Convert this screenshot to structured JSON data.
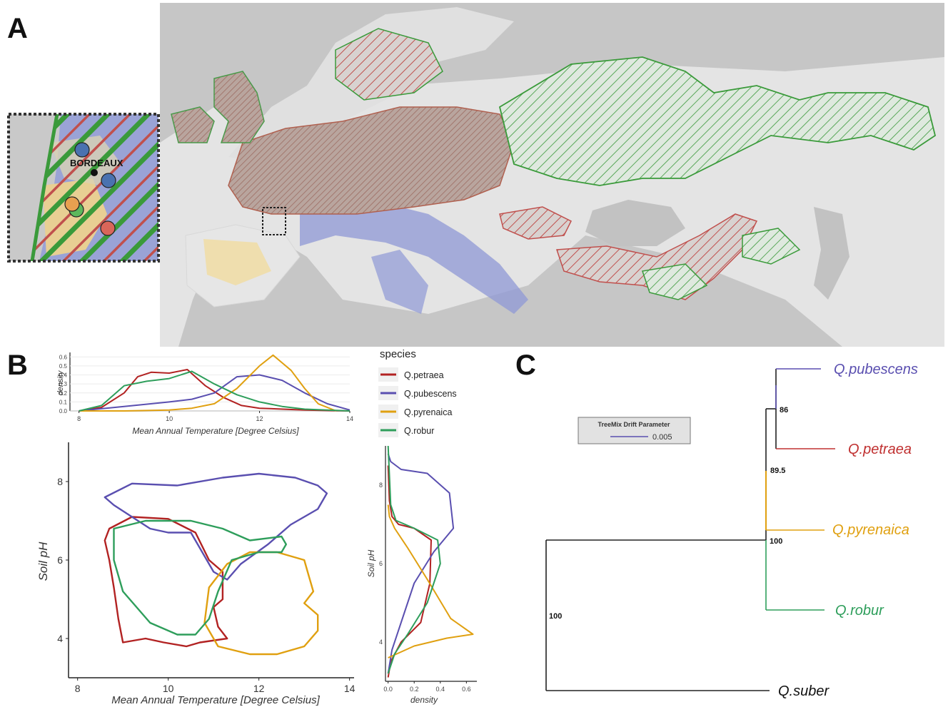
{
  "panels": {
    "a": "A",
    "b": "B",
    "c": "C"
  },
  "map": {
    "inset_label": "BORDEAUX",
    "colors": {
      "robur": "#3a9a3a",
      "petraea": "#c0504d",
      "pubescens": "#6b7fc9",
      "pyrenaica": "#e8b84a"
    },
    "inset_points": [
      {
        "species": "pubescens",
        "color": "#4a72b0"
      },
      {
        "species": "pubescens",
        "color": "#4a72b0"
      },
      {
        "species": "pyrenaica",
        "color": "#e8a050"
      },
      {
        "species": "robur",
        "color": "#5cb85c"
      },
      {
        "species": "petraea",
        "color": "#d9665a"
      }
    ]
  },
  "chart_data": [
    {
      "type": "line",
      "name": "top-density",
      "xlabel": "Mean Annual Temperature [Degree Celsius]",
      "ylabel": "density",
      "xlim": [
        7.8,
        14
      ],
      "ylim": [
        0,
        0.65
      ],
      "xticks": [
        "8",
        "10",
        "12",
        "14"
      ],
      "yticks": [
        "0.0",
        "0.1",
        "0.2",
        "0.3",
        "0.4",
        "0.5",
        "0.6"
      ],
      "series": [
        {
          "name": "Q.petraea",
          "color": "#b22222",
          "x": [
            8,
            8.5,
            9,
            9.3,
            9.6,
            10,
            10.4,
            10.8,
            11.2,
            11.6,
            12,
            13,
            14
          ],
          "y": [
            0,
            0.04,
            0.2,
            0.38,
            0.43,
            0.42,
            0.46,
            0.28,
            0.15,
            0.06,
            0.03,
            0.01,
            0
          ]
        },
        {
          "name": "Q.pubescens",
          "color": "#5a4fb0",
          "x": [
            8,
            9,
            10,
            10.5,
            11,
            11.5,
            12,
            12.5,
            13,
            13.5,
            14
          ],
          "y": [
            0,
            0.05,
            0.1,
            0.13,
            0.2,
            0.38,
            0.4,
            0.34,
            0.2,
            0.08,
            0.01
          ]
        },
        {
          "name": "Q.pyrenaica",
          "color": "#e0a010",
          "x": [
            8,
            9,
            10,
            10.5,
            11,
            11.5,
            12,
            12.3,
            12.7,
            13,
            13.3,
            13.7
          ],
          "y": [
            0,
            0,
            0.01,
            0.03,
            0.08,
            0.25,
            0.5,
            0.62,
            0.45,
            0.25,
            0.08,
            0
          ]
        },
        {
          "name": "Q.robur",
          "color": "#2e9e5b",
          "x": [
            8,
            8.5,
            9,
            9.5,
            10,
            10.5,
            11,
            11.5,
            12,
            12.5,
            13,
            14
          ],
          "y": [
            0,
            0.06,
            0.28,
            0.33,
            0.36,
            0.44,
            0.3,
            0.18,
            0.1,
            0.05,
            0.02,
            0
          ]
        }
      ]
    },
    {
      "type": "line",
      "name": "contours",
      "xlabel": "Mean Annual Temperature [Degree Celsius]",
      "ylabel": "Soil pH",
      "xlim": [
        7.8,
        14.1
      ],
      "ylim": [
        3,
        9
      ],
      "xticks": [
        "8",
        "10",
        "12",
        "14"
      ],
      "yticks": [
        "4",
        "6",
        "8"
      ],
      "series": [
        {
          "name": "Q.petraea",
          "color": "#b22222",
          "x": [
            8.7,
            9.2,
            10,
            10.6,
            10.9,
            11.2,
            11.2,
            11.0,
            11.1,
            11.3,
            10.7,
            10.4,
            9.9,
            9.5,
            9.0,
            8.9,
            8.8,
            8.7,
            8.6,
            8.7
          ],
          "y": [
            6.8,
            7.1,
            7.05,
            6.7,
            6.0,
            5.7,
            5.0,
            4.8,
            4.3,
            4.0,
            3.9,
            3.8,
            3.9,
            4.0,
            3.9,
            4.5,
            5.3,
            6.0,
            6.5,
            6.8
          ]
        },
        {
          "name": "Q.pubescens",
          "color": "#5a4fb0",
          "x": [
            8.6,
            9.2,
            10.2,
            11.2,
            12.0,
            12.8,
            13.3,
            13.5,
            13.3,
            12.7,
            12.2,
            11.6,
            11.3,
            11.0,
            10.8,
            10.5,
            10.0,
            9.6,
            9.2,
            8.8,
            8.6
          ],
          "y": [
            7.6,
            7.95,
            7.9,
            8.1,
            8.2,
            8.1,
            7.9,
            7.7,
            7.3,
            6.9,
            6.4,
            5.9,
            5.5,
            5.7,
            6.1,
            6.7,
            6.7,
            6.8,
            7.1,
            7.4,
            7.6
          ]
        },
        {
          "name": "Q.pyrenaica",
          "color": "#e0a010",
          "x": [
            10.9,
            11.3,
            11.8,
            12.4,
            13.0,
            13.1,
            13.2,
            13.0,
            13.3,
            13.3,
            13.0,
            12.4,
            11.8,
            11.1,
            10.8,
            10.9
          ],
          "y": [
            5.3,
            5.9,
            6.2,
            6.2,
            6.0,
            5.6,
            5.2,
            4.9,
            4.6,
            4.2,
            3.8,
            3.6,
            3.6,
            3.8,
            4.4,
            5.3
          ]
        },
        {
          "name": "Q.robur",
          "color": "#2e9e5b",
          "x": [
            8.8,
            9.5,
            10.5,
            11.2,
            11.8,
            12.5,
            12.6,
            12.5,
            12.0,
            11.4,
            11.1,
            10.9,
            10.6,
            10.2,
            9.6,
            9.0,
            8.8,
            8.8
          ],
          "y": [
            6.8,
            7.0,
            7.0,
            6.8,
            6.5,
            6.6,
            6.4,
            6.2,
            6.2,
            6.0,
            5.2,
            4.5,
            4.1,
            4.1,
            4.4,
            5.2,
            6.0,
            6.8
          ]
        }
      ]
    },
    {
      "type": "line",
      "name": "right-density",
      "xlabel": "density",
      "ylabel": "Soil pH",
      "xlim": [
        -0.02,
        0.68
      ],
      "ylim": [
        3,
        9
      ],
      "xticks": [
        "0.0",
        "0.2",
        "0.4",
        "0.6"
      ],
      "yticks": [
        "4",
        "6",
        "8"
      ],
      "series": [
        {
          "name": "Q.petraea",
          "color": "#b22222",
          "x": [
            0,
            0.02,
            0.1,
            0.25,
            0.32,
            0.33,
            0.2,
            0.08,
            0.03,
            0.01,
            0
          ],
          "y": [
            3.1,
            3.5,
            4.0,
            4.5,
            5.5,
            6.6,
            6.9,
            7.0,
            7.2,
            7.6,
            8.5
          ]
        },
        {
          "name": "Q.pubescens",
          "color": "#5a4fb0",
          "x": [
            0,
            0.03,
            0.1,
            0.2,
            0.35,
            0.5,
            0.47,
            0.3,
            0.1,
            0.02,
            0
          ],
          "y": [
            3.2,
            3.8,
            4.5,
            5.5,
            6.3,
            6.9,
            7.8,
            8.3,
            8.4,
            8.6,
            8.8
          ]
        },
        {
          "name": "Q.pyrenaica",
          "color": "#e0a010",
          "x": [
            0,
            0.2,
            0.45,
            0.65,
            0.48,
            0.3,
            0.15,
            0.05,
            0.01,
            0
          ],
          "y": [
            3.6,
            3.9,
            4.1,
            4.2,
            4.6,
            5.6,
            6.4,
            6.9,
            7.2,
            7.5
          ]
        },
        {
          "name": "Q.robur",
          "color": "#2e9e5b",
          "x": [
            0,
            0.05,
            0.15,
            0.3,
            0.4,
            0.38,
            0.2,
            0.06,
            0.02,
            0
          ],
          "y": [
            3.2,
            3.7,
            4.2,
            5.0,
            6.0,
            6.6,
            6.9,
            7.1,
            7.5,
            9.0
          ]
        }
      ]
    }
  ],
  "legend": {
    "title": "species",
    "items": [
      {
        "label": "Q.petraea",
        "color": "#b22222"
      },
      {
        "label": "Q.pubescens",
        "color": "#5a4fb0"
      },
      {
        "label": "Q.pyrenaica",
        "color": "#e0a010"
      },
      {
        "label": "Q.robur",
        "color": "#2e9e5b"
      }
    ]
  },
  "tree": {
    "drift_legend": {
      "title": "TreeMix Drift Parameter",
      "value": "0.005"
    },
    "tips": [
      {
        "label": "Q.pubescens",
        "color": "#5a4fb0"
      },
      {
        "label": "Q.petraea",
        "color": "#c03030"
      },
      {
        "label": "Q.pyrenaica",
        "color": "#e0a010"
      },
      {
        "label": "Q.robur",
        "color": "#2e9e5b"
      },
      {
        "label": "Q.suber",
        "color": "#111111"
      }
    ],
    "bootstrap": [
      "86",
      "89.5",
      "100",
      "100"
    ]
  }
}
